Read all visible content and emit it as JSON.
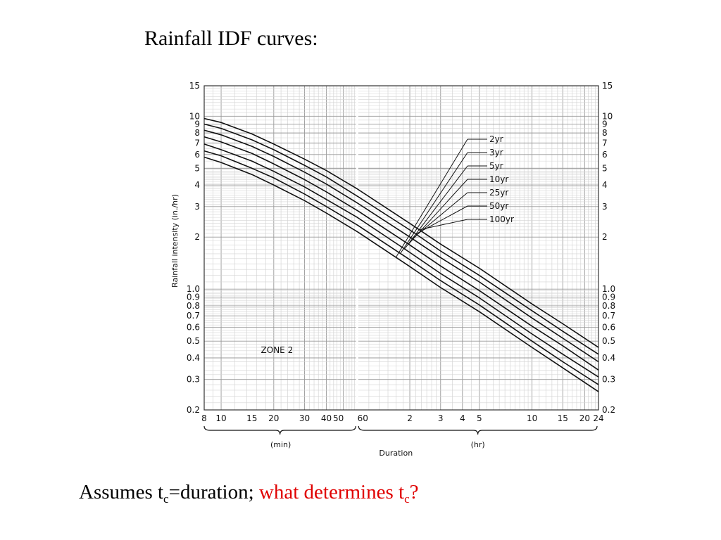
{
  "slide": {
    "title": "Rainfall IDF curves:",
    "footer_prefix": "Assumes t",
    "footer_sub": "c",
    "footer_mid": "=duration; ",
    "footer_question": "what determines t",
    "footer_question_sub": "c",
    "footer_question_end": "?",
    "question_color": "#e00000"
  },
  "chart_data": {
    "type": "line",
    "title": "",
    "xlabel": "Duration",
    "ylabel": "Rainfall intensity (in./hr)",
    "x_scale": "log",
    "y_scale": "log",
    "x_unit_groups": [
      "(min)",
      "(hr)"
    ],
    "xlim_minutes": [
      8,
      1440
    ],
    "ylim": [
      0.2,
      15
    ],
    "grid": true,
    "annotation": "ZONE 2",
    "legend_position": "upper-right",
    "x_ticks": [
      {
        "minutes": 8,
        "label": "8"
      },
      {
        "minutes": 10,
        "label": "10"
      },
      {
        "minutes": 15,
        "label": "15"
      },
      {
        "minutes": 20,
        "label": "20"
      },
      {
        "minutes": 30,
        "label": "30"
      },
      {
        "minutes": 40,
        "label": "40"
      },
      {
        "minutes": 50,
        "label": "50"
      },
      {
        "minutes": 60,
        "label": "60"
      },
      {
        "minutes": 120,
        "label": "2"
      },
      {
        "minutes": 180,
        "label": "3"
      },
      {
        "minutes": 240,
        "label": "4"
      },
      {
        "minutes": 300,
        "label": "5"
      },
      {
        "minutes": 600,
        "label": "10"
      },
      {
        "minutes": 900,
        "label": "15"
      },
      {
        "minutes": 1200,
        "label": "20"
      },
      {
        "minutes": 1440,
        "label": "24"
      }
    ],
    "y_ticks": [
      {
        "value": 15,
        "label": "15"
      },
      {
        "value": 10,
        "label": "10"
      },
      {
        "value": 9,
        "label": "9"
      },
      {
        "value": 8,
        "label": "8"
      },
      {
        "value": 7,
        "label": "7"
      },
      {
        "value": 6,
        "label": "6"
      },
      {
        "value": 5,
        "label": "5"
      },
      {
        "value": 4,
        "label": "4"
      },
      {
        "value": 3,
        "label": "3"
      },
      {
        "value": 2,
        "label": "2"
      },
      {
        "value": 1.0,
        "label": "1.0"
      },
      {
        "value": 0.9,
        "label": "0.9"
      },
      {
        "value": 0.8,
        "label": "0.8"
      },
      {
        "value": 0.7,
        "label": "0.7"
      },
      {
        "value": 0.6,
        "label": "0.6"
      },
      {
        "value": 0.5,
        "label": "0.5"
      },
      {
        "value": 0.4,
        "label": "0.4"
      },
      {
        "value": 0.3,
        "label": "0.3"
      },
      {
        "value": 0.2,
        "label": "0.2"
      }
    ],
    "x_minutes": [
      8,
      10,
      15,
      20,
      30,
      40,
      60,
      120,
      180,
      300,
      600,
      900,
      1440
    ],
    "series": [
      {
        "name": "2yr",
        "values": [
          5.8,
          5.4,
          4.6,
          4.0,
          3.25,
          2.75,
          2.15,
          1.35,
          1.02,
          0.74,
          0.46,
          0.35,
          0.255
        ]
      },
      {
        "name": "3yr",
        "values": [
          6.3,
          5.9,
          5.0,
          4.4,
          3.55,
          3.0,
          2.35,
          1.48,
          1.12,
          0.81,
          0.5,
          0.38,
          0.28
        ]
      },
      {
        "name": "5yr",
        "values": [
          6.9,
          6.4,
          5.5,
          4.8,
          3.9,
          3.3,
          2.6,
          1.63,
          1.23,
          0.89,
          0.55,
          0.42,
          0.31
        ]
      },
      {
        "name": "10yr",
        "values": [
          7.6,
          7.1,
          6.1,
          5.3,
          4.3,
          3.65,
          2.85,
          1.8,
          1.36,
          0.98,
          0.61,
          0.47,
          0.34
        ]
      },
      {
        "name": "25yr",
        "values": [
          8.3,
          7.8,
          6.7,
          5.85,
          4.75,
          4.05,
          3.15,
          2.0,
          1.52,
          1.1,
          0.68,
          0.52,
          0.38
        ]
      },
      {
        "name": "50yr",
        "values": [
          9.0,
          8.5,
          7.3,
          6.4,
          5.2,
          4.45,
          3.45,
          2.2,
          1.66,
          1.2,
          0.75,
          0.57,
          0.42
        ]
      },
      {
        "name": "100yr",
        "values": [
          9.7,
          9.2,
          7.9,
          6.9,
          5.65,
          4.85,
          3.8,
          2.4,
          1.82,
          1.32,
          0.82,
          0.63,
          0.46
        ]
      }
    ]
  }
}
